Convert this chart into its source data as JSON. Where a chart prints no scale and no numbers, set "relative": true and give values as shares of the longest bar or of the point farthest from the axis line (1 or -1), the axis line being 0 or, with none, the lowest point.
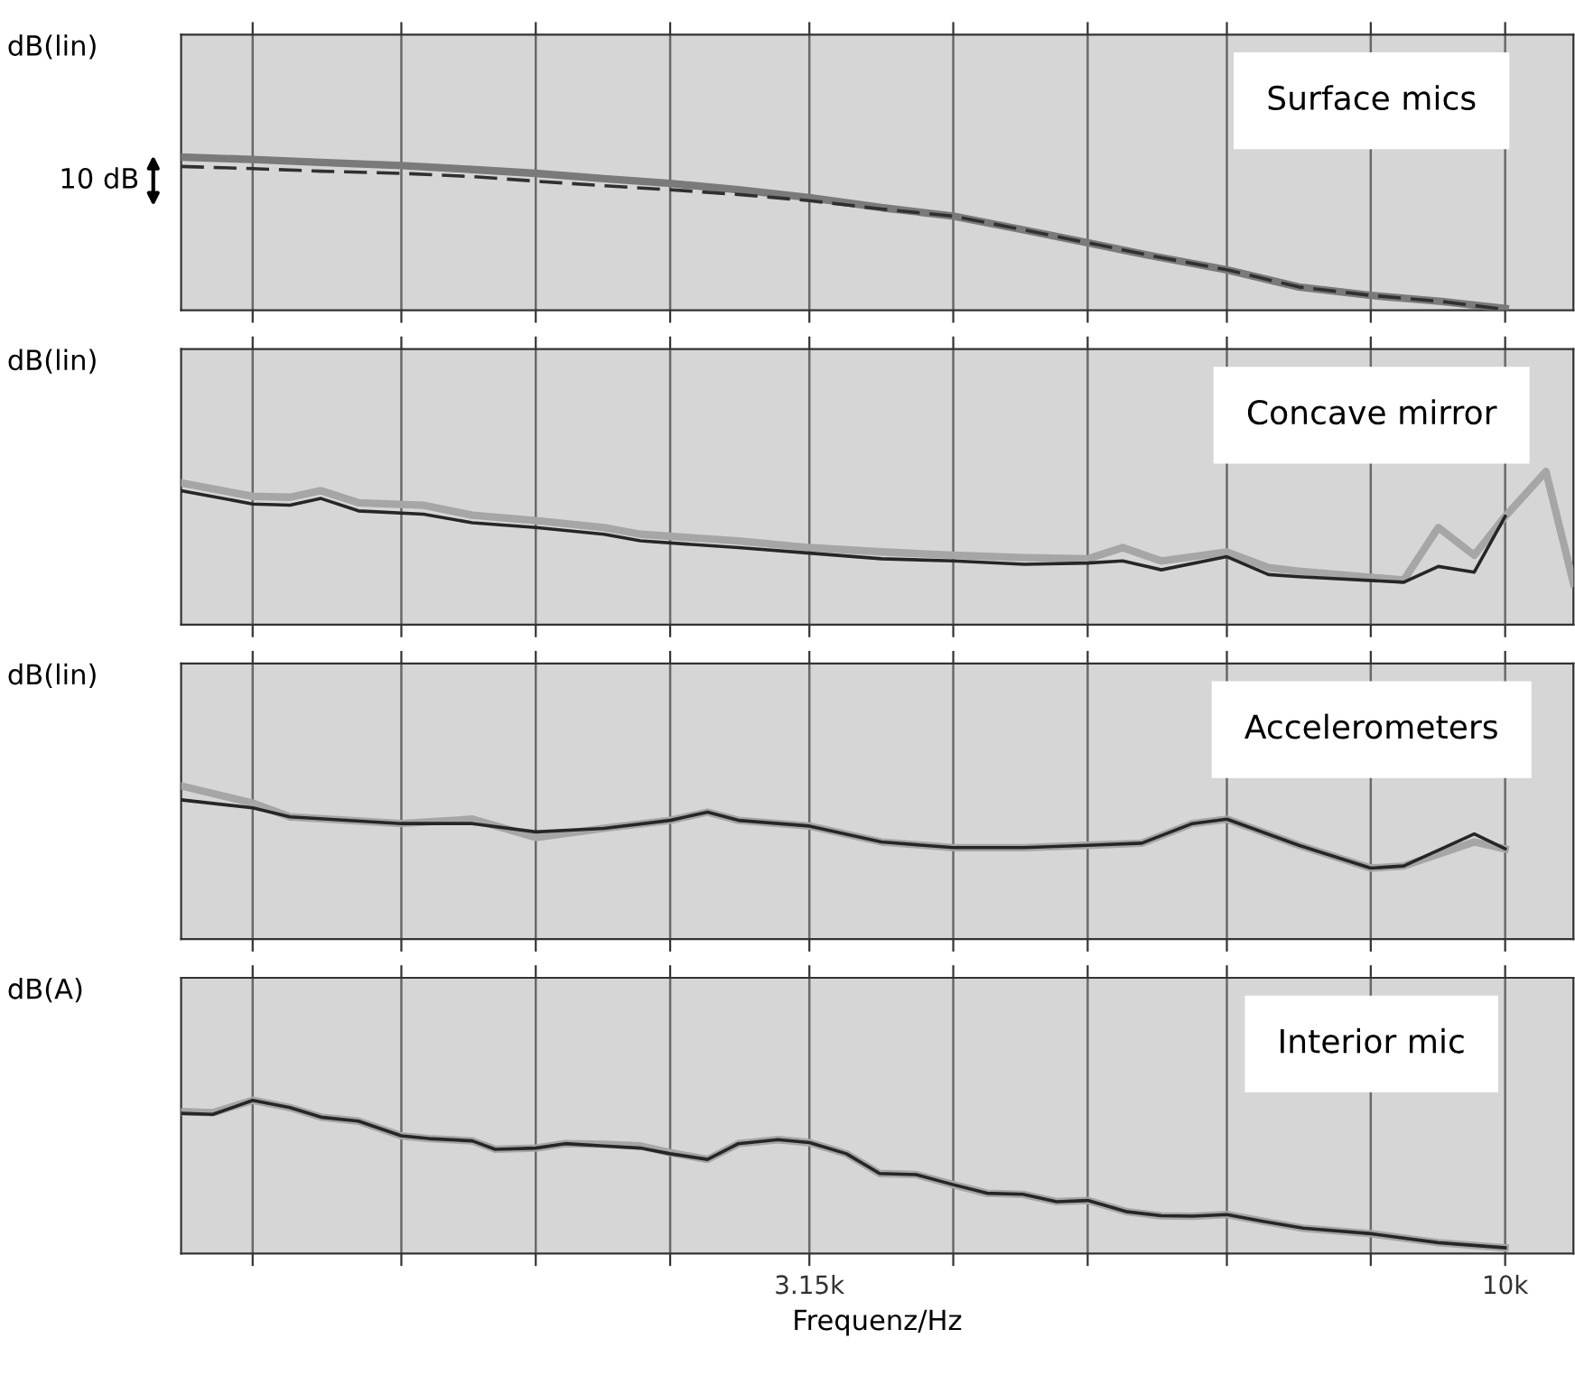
{
  "chart_data": [
    {
      "type": "line",
      "title": "Surface mics",
      "ylabel": "dB(lin)",
      "annotations": [
        "10 dB"
      ],
      "relative": true,
      "log": "x",
      "grid": true,
      "tick_labels": false,
      "xlim": [
        1110,
        11200
      ],
      "xticks": [
        {
          "value": 1250,
          "label": null
        },
        {
          "value": 1600,
          "label": null
        },
        {
          "value": 2000,
          "label": null
        },
        {
          "value": 2500,
          "label": null
        },
        {
          "value": 3150,
          "label": null
        },
        {
          "value": 4000,
          "label": null
        },
        {
          "value": 5000,
          "label": null
        },
        {
          "value": 6300,
          "label": null
        },
        {
          "value": 8000,
          "label": null
        },
        {
          "value": 10000,
          "label": null
        }
      ],
      "x": [
        1110,
        1250,
        1400,
        1600,
        1800,
        2000,
        2240,
        2500,
        2800,
        3150,
        3550,
        4000,
        4500,
        5000,
        5600,
        6300,
        7100,
        8000,
        9000,
        10000
      ],
      "series": [
        {
          "color": "#7a7a7a",
          "line_style": "solid",
          "values": [
            1,
            0.985,
            0.965,
            0.945,
            0.919,
            0.894,
            0.859,
            0.828,
            0.787,
            0.736,
            0.67,
            0.615,
            0.524,
            0.441,
            0.35,
            0.264,
            0.152,
            0.097,
            0.057,
            0.011
          ]
        },
        {
          "color": "#303030",
          "line_style": "dashed",
          "values": [
            0.939,
            0.925,
            0.908,
            0.894,
            0.873,
            0.843,
            0.813,
            0.787,
            0.756,
            0.716,
            0.661,
            0.615,
            0.524,
            0.441,
            0.35,
            0.264,
            0.152,
            0.097,
            0.057,
            0.005
          ]
        }
      ]
    },
    {
      "type": "line",
      "title": "Concave mirror",
      "ylabel": "dB(lin)",
      "relative": true,
      "log": "x",
      "grid": true,
      "tick_labels": false,
      "xlim": [
        1110,
        11200
      ],
      "xticks": [
        {
          "value": 1250,
          "label": null
        },
        {
          "value": 1600,
          "label": null
        },
        {
          "value": 2000,
          "label": null
        },
        {
          "value": 2500,
          "label": null
        },
        {
          "value": 3150,
          "label": null
        },
        {
          "value": 4000,
          "label": null
        },
        {
          "value": 5000,
          "label": null
        },
        {
          "value": 6300,
          "label": null
        },
        {
          "value": 8000,
          "label": null
        },
        {
          "value": 10000,
          "label": null
        }
      ],
      "x": [
        1110,
        1250,
        1330,
        1400,
        1490,
        1660,
        1800,
        2000,
        2240,
        2380,
        2800,
        3150,
        3550,
        4000,
        4500,
        5000,
        5300,
        5650,
        6300,
        6750,
        7100,
        8450,
        8950,
        9500,
        10000,
        10700,
        11200
      ],
      "series": [
        {
          "color": "#a6a6a6",
          "line_style": "solid",
          "values": [
            0.925,
            0.838,
            0.832,
            0.875,
            0.796,
            0.78,
            0.715,
            0.679,
            0.634,
            0.59,
            0.547,
            0.503,
            0.475,
            0.453,
            0.438,
            0.43,
            0.503,
            0.416,
            0.475,
            0.372,
            0.349,
            0.291,
            0.634,
            0.453,
            0.707,
            1,
            0.271
          ]
        },
        {
          "color": "#262626",
          "line_style": "solid",
          "values": [
            0.875,
            0.788,
            0.78,
            0.824,
            0.743,
            0.721,
            0.665,
            0.634,
            0.59,
            0.547,
            0.503,
            0.467,
            0.43,
            0.416,
            0.394,
            0.402,
            0.416,
            0.358,
            0.444,
            0.327,
            0.313,
            0.277,
            0.38,
            0.343,
            0.707,
            null,
            null
          ]
        }
      ]
    },
    {
      "type": "line",
      "title": "Accelerometers",
      "ylabel": "dB(lin)",
      "relative": true,
      "log": "x",
      "grid": true,
      "tick_labels": false,
      "xlim": [
        1110,
        11200
      ],
      "xticks": [
        {
          "value": 1250,
          "label": null
        },
        {
          "value": 1600,
          "label": null
        },
        {
          "value": 2000,
          "label": null
        },
        {
          "value": 2500,
          "label": null
        },
        {
          "value": 3150,
          "label": null
        },
        {
          "value": 4000,
          "label": null
        },
        {
          "value": 5000,
          "label": null
        },
        {
          "value": 6300,
          "label": null
        },
        {
          "value": 8000,
          "label": null
        },
        {
          "value": 10000,
          "label": null
        }
      ],
      "x": [
        1110,
        1250,
        1330,
        1600,
        1800,
        2000,
        2240,
        2500,
        2660,
        2800,
        3150,
        3550,
        4000,
        4500,
        5000,
        5470,
        5950,
        6300,
        7100,
        8000,
        8450,
        9500,
        10000
      ],
      "series": [
        {
          "color": "#a6a6a6",
          "line_style": "solid",
          "values": [
            1,
            0.888,
            0.798,
            0.754,
            0.783,
            0.663,
            0.723,
            0.775,
            0.829,
            0.775,
            0.738,
            0.634,
            0.597,
            0.597,
            0.612,
            0.626,
            0.754,
            0.783,
            0.612,
            0.463,
            0.477,
            0.634,
            0.589
          ]
        },
        {
          "color": "#262626",
          "line_style": "solid",
          "values": [
            0.909,
            0.857,
            0.798,
            0.754,
            0.754,
            0.7,
            0.723,
            0.775,
            0.829,
            0.775,
            0.738,
            0.634,
            0.597,
            0.597,
            0.612,
            0.626,
            0.754,
            0.783,
            0.612,
            0.463,
            0.477,
            0.686,
            0.589
          ]
        }
      ]
    },
    {
      "type": "line",
      "title": "Interior mic",
      "ylabel": "dB(A)",
      "xlabel": "Frequenz/Hz",
      "relative": true,
      "log": "x",
      "grid": true,
      "tick_labels": "x",
      "xlim": [
        1110,
        11200
      ],
      "xticks": [
        {
          "value": 1250,
          "label": null
        },
        {
          "value": 1600,
          "label": null
        },
        {
          "value": 2000,
          "label": null
        },
        {
          "value": 2500,
          "label": null
        },
        {
          "value": 3150,
          "label": "3.15k"
        },
        {
          "value": 4000,
          "label": null
        },
        {
          "value": 5000,
          "label": null
        },
        {
          "value": 6300,
          "label": null
        },
        {
          "value": 8000,
          "label": null
        },
        {
          "value": 10000,
          "label": "10k"
        }
      ],
      "x": [
        1110,
        1170,
        1250,
        1330,
        1400,
        1490,
        1600,
        1675,
        1800,
        1870,
        2000,
        2100,
        2240,
        2380,
        2500,
        2660,
        2800,
        2990,
        3150,
        3350,
        3540,
        3760,
        4000,
        4230,
        4490,
        4750,
        5000,
        5340,
        5650,
        5950,
        6300,
        6690,
        7150,
        8000,
        8950,
        10000
      ],
      "series": [
        {
          "color": "#a6a6a6",
          "line_style": "solid",
          "values": [
            0.926,
            0.919,
            1,
            0.952,
            0.89,
            0.864,
            0.768,
            0.75,
            0.735,
            0.68,
            0.688,
            0.717,
            0.713,
            0.702,
            0.658,
            0.614,
            0.717,
            0.743,
            0.724,
            0.651,
            0.522,
            0.515,
            0.449,
            0.393,
            0.386,
            0.338,
            0.346,
            0.272,
            0.246,
            0.243,
            0.254,
            0.21,
            0.165,
            0.129,
            0.07,
            0.037
          ]
        },
        {
          "color": "#262626",
          "line_style": "solid",
          "values": [
            0.915,
            0.908,
            1,
            0.952,
            0.89,
            0.864,
            0.768,
            0.75,
            0.735,
            0.68,
            0.688,
            0.717,
            0.702,
            0.688,
            0.651,
            0.614,
            0.717,
            0.743,
            0.724,
            0.651,
            0.522,
            0.515,
            0.449,
            0.393,
            0.386,
            0.338,
            0.346,
            0.272,
            0.246,
            0.243,
            0.254,
            0.21,
            0.165,
            0.129,
            0.07,
            0.037
          ]
        }
      ]
    }
  ]
}
